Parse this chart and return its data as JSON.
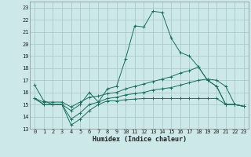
{
  "title": "",
  "xlabel": "Humidex (Indice chaleur)",
  "bg_color": "#cce8e8",
  "grid_color": "#aacccc",
  "line_color": "#1a6e60",
  "xlim": [
    -0.5,
    23.5
  ],
  "ylim": [
    13,
    23.5
  ],
  "yticks": [
    13,
    14,
    15,
    16,
    17,
    18,
    19,
    20,
    21,
    22,
    23
  ],
  "xticks": [
    0,
    1,
    2,
    3,
    4,
    5,
    6,
    7,
    8,
    9,
    10,
    11,
    12,
    13,
    14,
    15,
    16,
    17,
    18,
    19,
    20,
    21,
    22,
    23
  ],
  "line1_x": [
    0,
    1,
    2,
    3,
    4,
    5,
    6,
    7,
    8,
    9,
    10,
    11,
    12,
    13,
    14,
    15,
    16,
    17,
    18,
    19,
    20,
    21,
    22,
    23
  ],
  "line1_y": [
    16.6,
    15.3,
    15.0,
    15.0,
    14.5,
    15.0,
    16.0,
    15.2,
    16.3,
    16.5,
    18.8,
    21.5,
    21.4,
    22.7,
    22.6,
    20.5,
    19.3,
    19.0,
    18.1,
    17.0,
    16.5,
    15.0,
    15.0,
    14.85
  ],
  "line2_x": [
    0,
    1,
    2,
    3,
    4,
    5,
    6,
    7,
    8,
    9,
    10,
    11,
    12,
    13,
    14,
    15,
    16,
    17,
    18,
    19,
    20,
    21,
    22,
    23
  ],
  "line2_y": [
    15.5,
    15.0,
    15.0,
    15.0,
    13.3,
    13.8,
    14.5,
    15.0,
    15.3,
    15.3,
    15.4,
    15.45,
    15.5,
    15.5,
    15.5,
    15.5,
    15.5,
    15.5,
    15.5,
    15.5,
    15.5,
    15.0,
    15.0,
    14.85
  ],
  "line3_x": [
    0,
    1,
    2,
    3,
    4,
    5,
    6,
    7,
    8,
    9,
    10,
    11,
    12,
    13,
    14,
    15,
    16,
    17,
    18,
    19,
    20,
    21,
    22,
    23
  ],
  "line3_y": [
    15.5,
    15.0,
    15.0,
    15.0,
    13.8,
    14.3,
    15.0,
    15.2,
    15.5,
    15.6,
    15.8,
    15.9,
    16.0,
    16.2,
    16.3,
    16.4,
    16.6,
    16.8,
    17.0,
    17.1,
    17.0,
    16.5,
    15.0,
    14.85
  ],
  "line4_x": [
    0,
    1,
    2,
    3,
    4,
    5,
    6,
    7,
    8,
    9,
    10,
    11,
    12,
    13,
    14,
    15,
    16,
    17,
    18,
    19,
    20,
    21,
    22,
    23
  ],
  "line4_y": [
    15.5,
    15.2,
    15.2,
    15.2,
    14.8,
    15.2,
    15.6,
    15.7,
    15.9,
    16.0,
    16.3,
    16.5,
    16.7,
    16.9,
    17.1,
    17.3,
    17.6,
    17.8,
    18.1,
    17.0,
    16.5,
    15.0,
    15.0,
    14.85
  ]
}
